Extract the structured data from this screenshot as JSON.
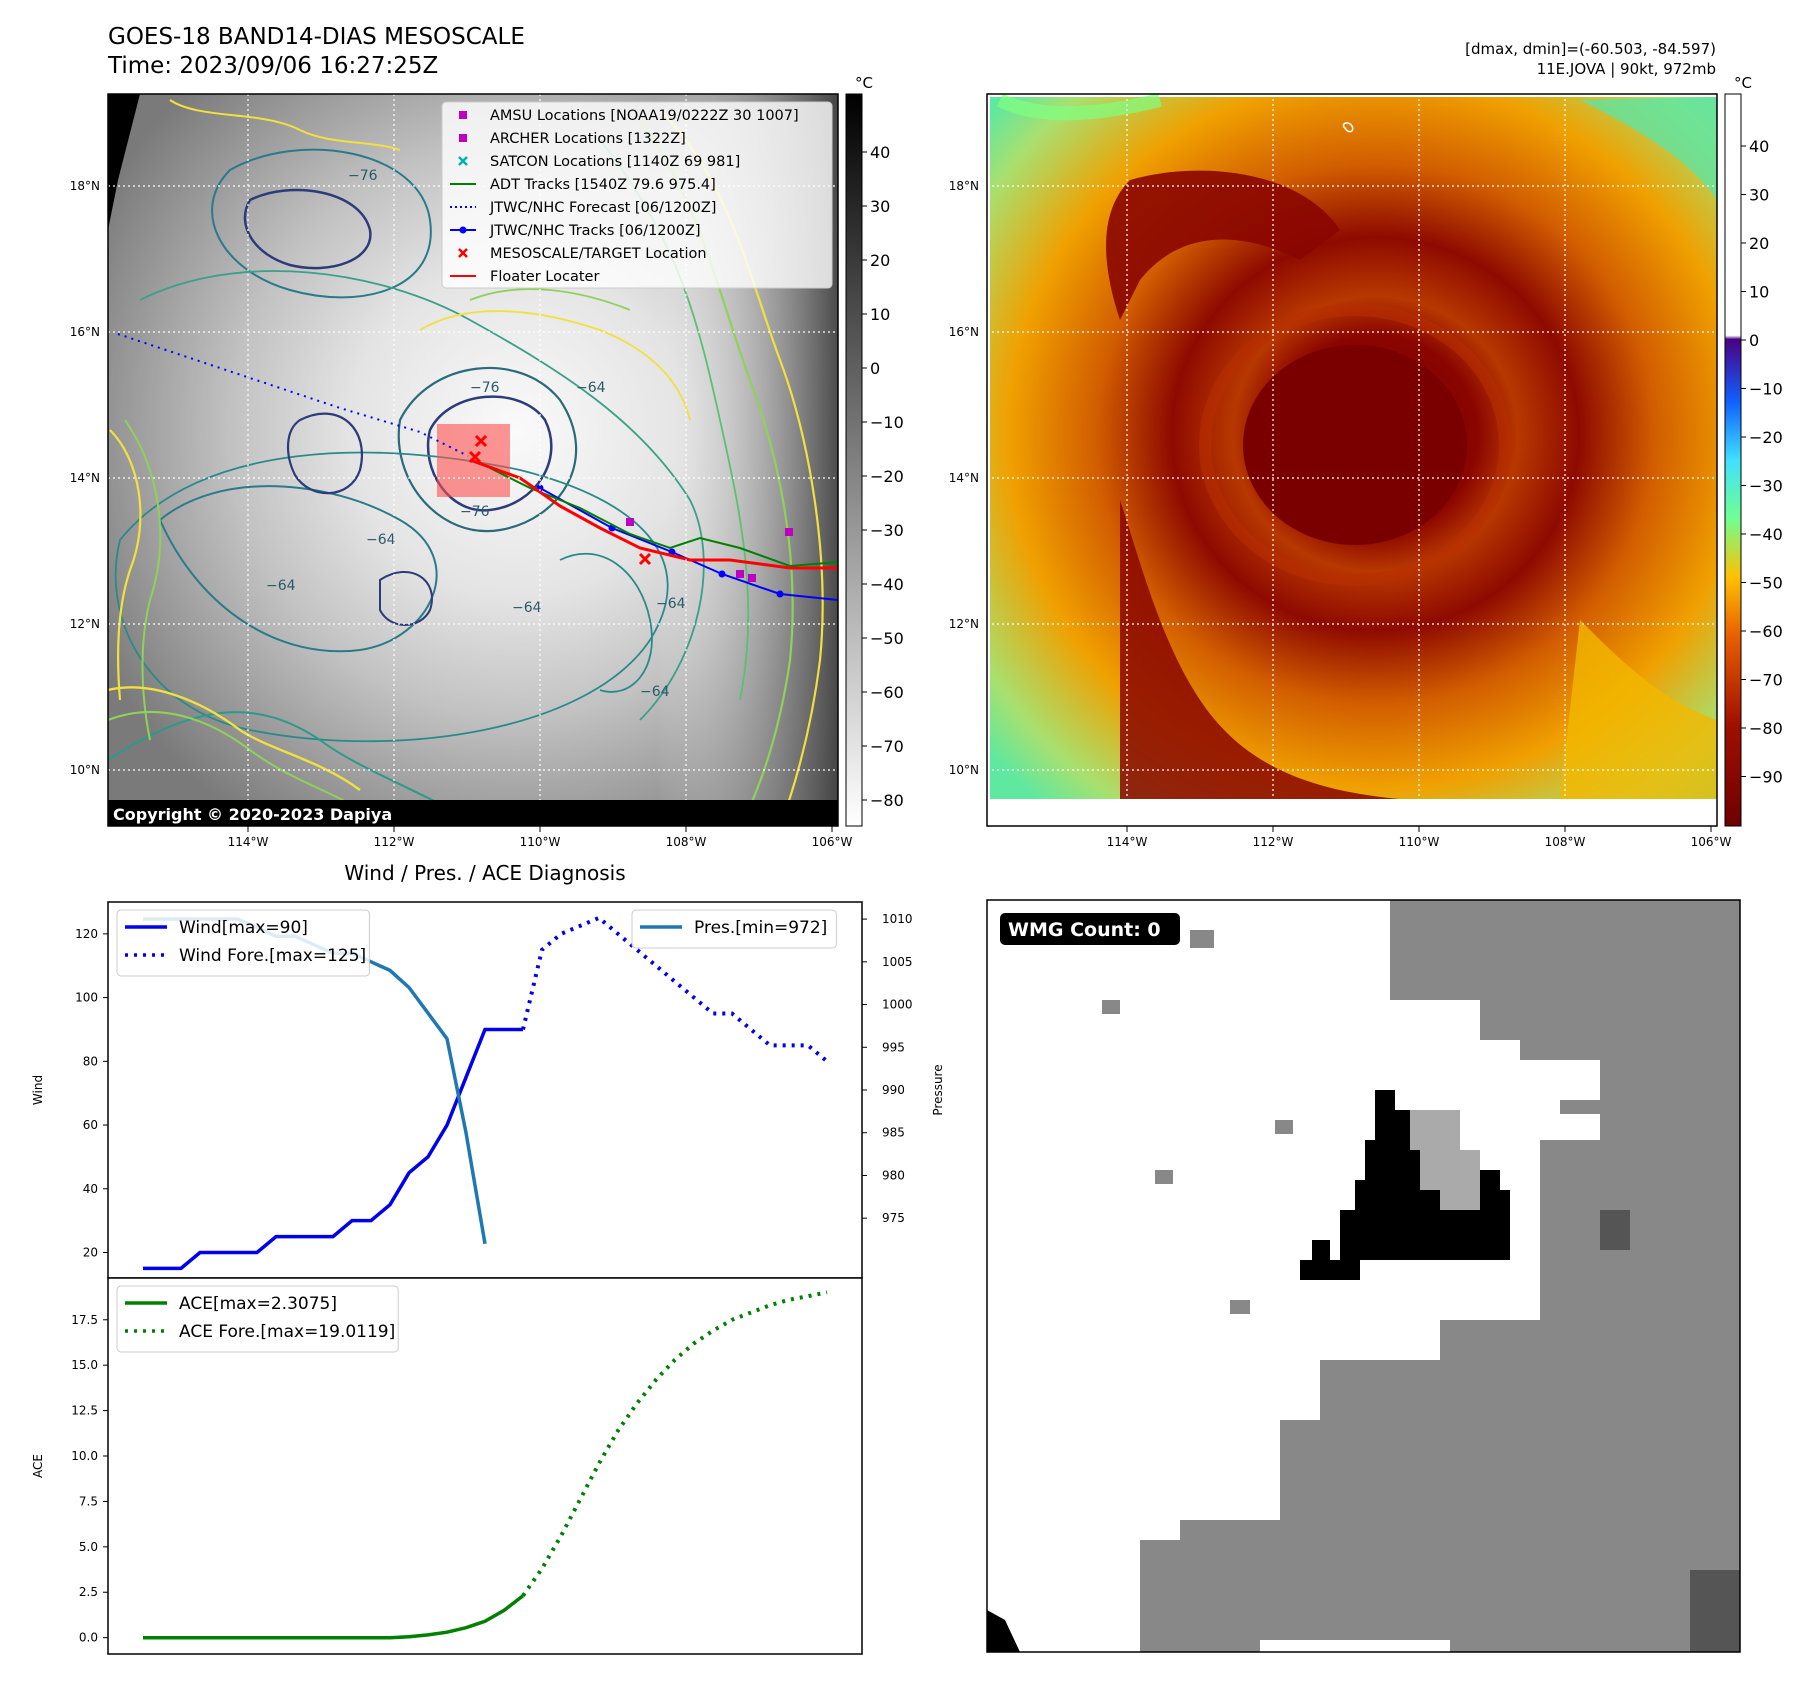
{
  "header": {
    "title": "GOES-18 BAND14-DIAS MESOSCALE",
    "time": "Time: 2023/09/06 16:27:25Z",
    "range_info": "[dmax, dmin]=(-60.503, -84.597)",
    "storm_info": "11E.JOVA | 90kt, 972mb",
    "copyright": "Copyright © 2020-2023 Dapiya"
  },
  "map_axes": {
    "lon_labels": [
      "114°W",
      "112°W",
      "110°W",
      "108°W",
      "106°W"
    ],
    "lat_labels": [
      "18°N",
      "16°N",
      "14°N",
      "12°N",
      "10°N"
    ]
  },
  "colorbar_left": {
    "unit": "°C",
    "ticks": [
      "40",
      "30",
      "20",
      "10",
      "0",
      "−10",
      "−20",
      "−30",
      "−40",
      "−50",
      "−60",
      "−70",
      "−80"
    ]
  },
  "colorbar_right": {
    "unit": "°C",
    "ticks": [
      "40",
      "30",
      "20",
      "10",
      "0",
      "−10",
      "−20",
      "−30",
      "−40",
      "−50",
      "−60",
      "−70",
      "−80",
      "−90"
    ]
  },
  "contour_labels": [
    "−76",
    "−64",
    "−76",
    "−64",
    "−64",
    "−64",
    "−64",
    "−64",
    "−76"
  ],
  "legend_map": [
    {
      "label": "AMSU Locations [NOAA19/0222Z 30 1007]",
      "color": "#c000c0",
      "marker": "square"
    },
    {
      "label": "ARCHER Locations [1322Z]",
      "color": "#c000c0",
      "marker": "square"
    },
    {
      "label": "SATCON Locations [1140Z 69 981]",
      "color": "#00b0b0",
      "marker": "x"
    },
    {
      "label": "ADT Tracks [1540Z 79.6 975.4]",
      "color": "#008000",
      "marker": "line"
    },
    {
      "label": "JTWC/NHC Forecast [06/1200Z]",
      "color": "#0000ff",
      "marker": "dotted"
    },
    {
      "label": "JTWC/NHC Tracks [06/1200Z]",
      "color": "#0000ff",
      "marker": "line-dot"
    },
    {
      "label": "MESOSCALE/TARGET Location",
      "color": "#ff0000",
      "marker": "x"
    },
    {
      "label": "Floater Locater",
      "color": "#ff0000",
      "marker": "line"
    }
  ],
  "wmg": {
    "label": "WMG Count: 0"
  },
  "chart_data": [
    {
      "type": "line",
      "title": "Wind / Pres. / ACE Diagnosis",
      "ylabel": "Wind",
      "ylabel_right": "Pressure",
      "ylim": [
        12,
        130
      ],
      "ylim_right": [
        968,
        1012
      ],
      "yticks": [
        20,
        40,
        60,
        80,
        100,
        120
      ],
      "yticks_right": [
        975,
        980,
        985,
        990,
        995,
        1000,
        1005,
        1010
      ],
      "xlim": [
        0,
        36
      ],
      "series": [
        {
          "name": "Wind[max=90]",
          "color": "#0000ee",
          "style": "solid",
          "x": [
            0,
            2,
            3,
            6,
            7,
            10,
            11,
            12,
            13,
            14,
            15,
            16,
            17,
            18,
            19,
            20
          ],
          "y": [
            15,
            15,
            20,
            20,
            25,
            25,
            30,
            30,
            35,
            45,
            50,
            60,
            75,
            90,
            90,
            90
          ]
        },
        {
          "name": "Wind Fore.[max=125]",
          "color": "#0000ee",
          "style": "dotted",
          "x": [
            20,
            21,
            22,
            24,
            25,
            26,
            27,
            28,
            29,
            30,
            31,
            32,
            33,
            34,
            35,
            36
          ],
          "y": [
            90,
            115,
            120,
            125,
            120,
            115,
            110,
            105,
            100,
            95,
            95,
            90,
            85,
            85,
            85,
            80
          ]
        },
        {
          "name": "Pres.[min=972]",
          "color": "#1f77b4",
          "style": "solid",
          "x": [
            0,
            5,
            6,
            7,
            8,
            10,
            11,
            12,
            13,
            14,
            15,
            16,
            17,
            18
          ],
          "y": [
            1010,
            1010,
            1009,
            1008,
            1008,
            1006,
            1006,
            1005,
            1004,
            1002,
            999,
            996,
            985,
            972
          ]
        }
      ],
      "legend": [
        "Wind[max=90]",
        "Wind Fore.[max=125]",
        "Pres.[min=972]"
      ]
    },
    {
      "type": "line",
      "ylabel": "ACE",
      "ylim": [
        -0.9,
        19.8
      ],
      "yticks": [
        0.0,
        2.5,
        5.0,
        7.5,
        10.0,
        12.5,
        15.0,
        17.5
      ],
      "xlim": [
        0,
        36
      ],
      "series": [
        {
          "name": "ACE[max=2.3075]",
          "color": "#008000",
          "style": "solid",
          "x": [
            0,
            2,
            4,
            6,
            8,
            10,
            12,
            13,
            14,
            15,
            16,
            17,
            18,
            19,
            20
          ],
          "y": [
            0,
            0,
            0,
            0,
            0,
            0,
            0,
            0,
            0.05,
            0.15,
            0.3,
            0.55,
            0.9,
            1.5,
            2.31
          ]
        },
        {
          "name": "ACE Fore.[max=19.0119]",
          "color": "#008000",
          "style": "dotted",
          "x": [
            20,
            21,
            22,
            23,
            24,
            25,
            26,
            27,
            28,
            29,
            30,
            31,
            32,
            33,
            34,
            35,
            36
          ],
          "y": [
            2.31,
            3.8,
            5.6,
            7.6,
            9.6,
            11.4,
            12.9,
            14.2,
            15.3,
            16.2,
            16.9,
            17.5,
            17.9,
            18.3,
            18.6,
            18.8,
            19.01
          ]
        }
      ],
      "legend": [
        "ACE[max=2.3075]",
        "ACE Fore.[max=19.0119]"
      ]
    }
  ]
}
